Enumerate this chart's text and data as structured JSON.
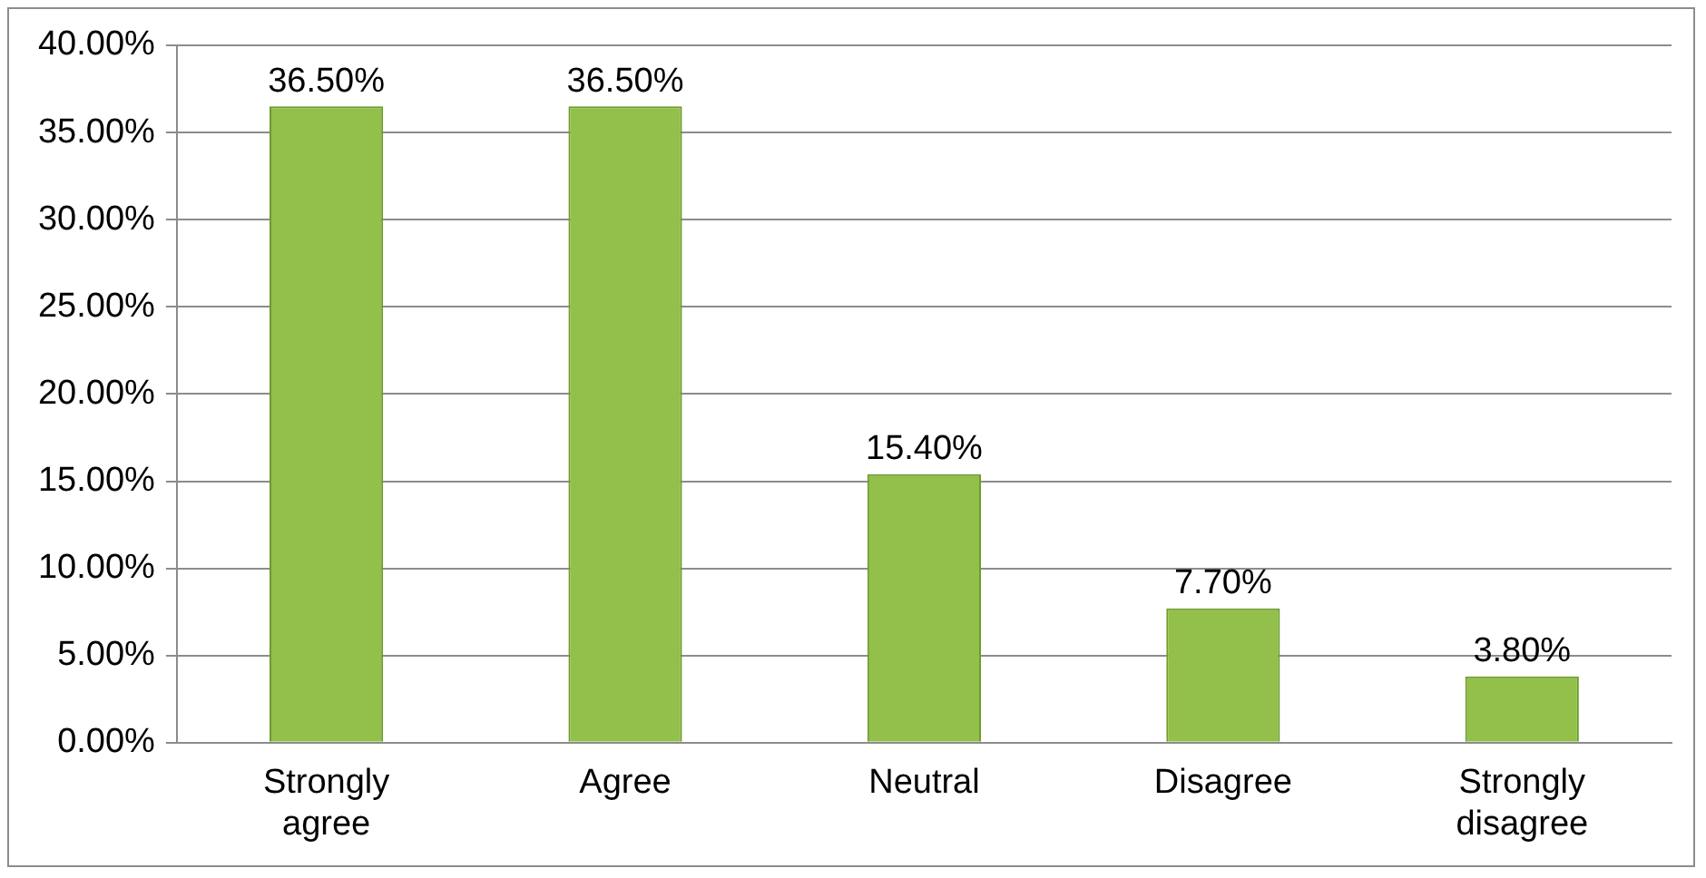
{
  "chart_data": {
    "type": "bar",
    "categories": [
      "Strongly agree",
      "Agree",
      "Neutral",
      "Disagree",
      "Strongly disagree"
    ],
    "values": [
      36.5,
      36.5,
      15.4,
      7.7,
      3.8
    ],
    "value_labels": [
      "36.50%",
      "36.50%",
      "15.40%",
      "7.70%",
      "3.80%"
    ],
    "color": "#92c04a",
    "ylim": [
      0,
      40
    ],
    "yticks": [
      {
        "value": 0,
        "label": "0.00%"
      },
      {
        "value": 5,
        "label": "5.00%"
      },
      {
        "value": 10,
        "label": "10.00%"
      },
      {
        "value": 15,
        "label": "15.00%"
      },
      {
        "value": 20,
        "label": "20.00%"
      },
      {
        "value": 25,
        "label": "25.00%"
      },
      {
        "value": 30,
        "label": "30.00%"
      },
      {
        "value": 35,
        "label": "35.00%"
      },
      {
        "value": 40,
        "label": "40.00%"
      }
    ],
    "grid": "y"
  }
}
